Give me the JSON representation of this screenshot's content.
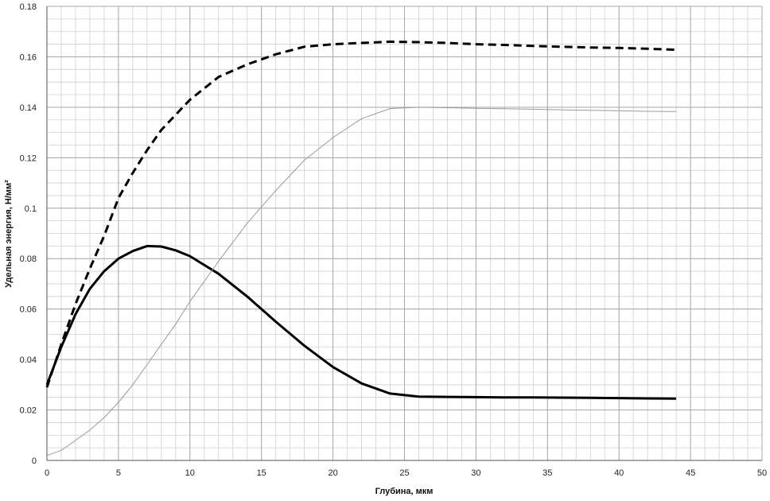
{
  "chart_data": {
    "type": "line",
    "xlabel": "Глубина, мкм",
    "ylabel": "Удельная энергия, Н/мм²",
    "xlim": [
      0,
      50
    ],
    "ylim": [
      0,
      0.18
    ],
    "x_ticks": [
      0,
      5,
      10,
      15,
      20,
      25,
      30,
      35,
      40,
      45,
      50
    ],
    "y_ticks": [
      0,
      0.02,
      0.04,
      0.06,
      0.08,
      0.1,
      0.12,
      0.14,
      0.16,
      0.18
    ],
    "x_tick_labels": [
      "0",
      "5",
      "10",
      "15",
      "20",
      "25",
      "30",
      "35",
      "40",
      "45",
      "50"
    ],
    "y_tick_labels": [
      "0",
      "0.02",
      "0.04",
      "0.06",
      "0.08",
      "0.1",
      "0.12",
      "0.14",
      "0.16",
      "0.18"
    ],
    "grid": true,
    "minor_grid_x_step": 1,
    "minor_grid_y_step": 0.005,
    "legend": "none",
    "series": [
      {
        "style": "dashed",
        "color": "#000000",
        "points": [
          [
            0,
            0.029
          ],
          [
            1,
            0.046
          ],
          [
            2,
            0.062
          ],
          [
            3,
            0.076
          ],
          [
            4,
            0.089
          ],
          [
            5,
            0.104
          ],
          [
            6,
            0.114
          ],
          [
            7,
            0.123
          ],
          [
            8,
            0.131
          ],
          [
            9,
            0.137
          ],
          [
            10,
            0.143
          ],
          [
            12,
            0.152
          ],
          [
            14,
            0.157
          ],
          [
            16,
            0.161
          ],
          [
            18,
            0.164
          ],
          [
            20,
            0.165
          ],
          [
            22,
            0.1655
          ],
          [
            24,
            0.166
          ],
          [
            26,
            0.1658
          ],
          [
            28,
            0.1655
          ],
          [
            30,
            0.165
          ],
          [
            32,
            0.1647
          ],
          [
            34,
            0.1643
          ],
          [
            36,
            0.164
          ],
          [
            38,
            0.1637
          ],
          [
            40,
            0.1635
          ],
          [
            42,
            0.1632
          ],
          [
            44,
            0.1628
          ]
        ]
      },
      {
        "style": "solid-thick",
        "color": "#000000",
        "points": [
          [
            0,
            0.03
          ],
          [
            1,
            0.045
          ],
          [
            2,
            0.058
          ],
          [
            3,
            0.068
          ],
          [
            4,
            0.075
          ],
          [
            5,
            0.08
          ],
          [
            6,
            0.083
          ],
          [
            7,
            0.085
          ],
          [
            8,
            0.0848
          ],
          [
            9,
            0.0833
          ],
          [
            10,
            0.081
          ],
          [
            12,
            0.074
          ],
          [
            14,
            0.065
          ],
          [
            16,
            0.055
          ],
          [
            18,
            0.0455
          ],
          [
            20,
            0.037
          ],
          [
            22,
            0.0305
          ],
          [
            24,
            0.0265
          ],
          [
            26,
            0.0253
          ],
          [
            28,
            0.0252
          ],
          [
            30,
            0.0251
          ],
          [
            32,
            0.025
          ],
          [
            34,
            0.025
          ],
          [
            36,
            0.0249
          ],
          [
            38,
            0.0248
          ],
          [
            40,
            0.0247
          ],
          [
            42,
            0.0246
          ],
          [
            44,
            0.0245
          ]
        ]
      },
      {
        "style": "solid-thin",
        "color": "#9a9a9a",
        "points": [
          [
            0,
            0.002
          ],
          [
            1,
            0.004
          ],
          [
            2,
            0.008
          ],
          [
            3,
            0.012
          ],
          [
            4,
            0.017
          ],
          [
            5,
            0.023
          ],
          [
            6,
            0.03
          ],
          [
            7,
            0.038
          ],
          [
            8,
            0.046
          ],
          [
            9,
            0.054
          ],
          [
            10,
            0.063
          ],
          [
            12,
            0.079
          ],
          [
            14,
            0.094
          ],
          [
            16,
            0.107
          ],
          [
            18,
            0.119
          ],
          [
            20,
            0.128
          ],
          [
            22,
            0.1355
          ],
          [
            24,
            0.1395
          ],
          [
            26,
            0.14
          ],
          [
            28,
            0.1398
          ],
          [
            30,
            0.1396
          ],
          [
            32,
            0.1394
          ],
          [
            34,
            0.1392
          ],
          [
            36,
            0.139
          ],
          [
            38,
            0.1388
          ],
          [
            40,
            0.1386
          ],
          [
            42,
            0.1384
          ],
          [
            44,
            0.1383
          ]
        ]
      }
    ]
  }
}
